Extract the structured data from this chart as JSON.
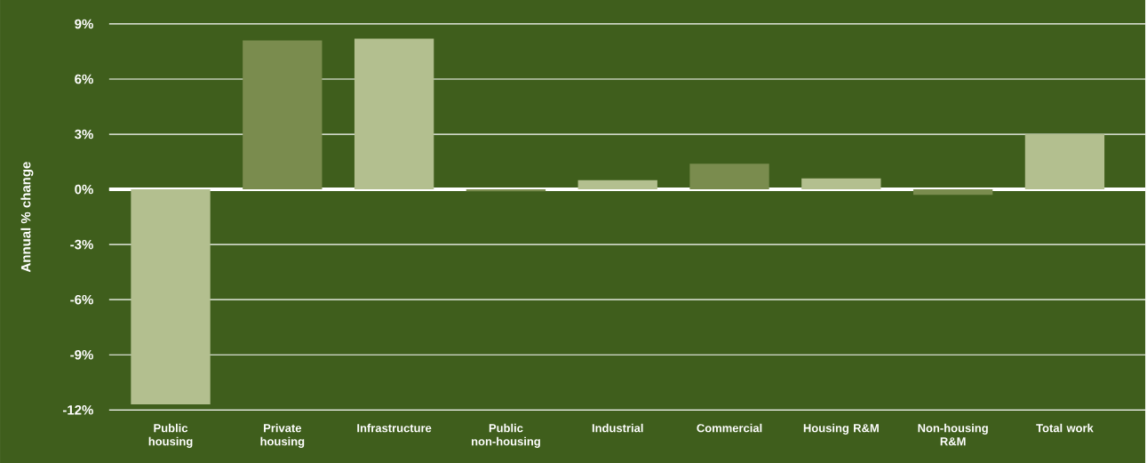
{
  "chart_data": {
    "type": "bar",
    "ylabel": "Annual % change",
    "categories": [
      "Public housing",
      "Private housing",
      "Infrastructure",
      "Public non-housing",
      "Industrial",
      "Commercial",
      "Housing R&M",
      "Non-housing R&M",
      "Total work"
    ],
    "values": [
      -11.7,
      8.1,
      8.2,
      -0.1,
      0.5,
      1.4,
      0.6,
      -0.3,
      3.0
    ],
    "colors": [
      "#b3bf8f",
      "#7a8c4e",
      "#b3bf8f",
      "#7a8c4e",
      "#b3bf8f",
      "#7a8c4e",
      "#b3bf8f",
      "#7a8c4e",
      "#b3bf8f"
    ],
    "ylim": [
      -12,
      9
    ],
    "yticks": [
      {
        "value": -12,
        "label": "-12%"
      },
      {
        "value": -9,
        "label": "-9%"
      },
      {
        "value": -6,
        "label": "-6%"
      },
      {
        "value": -3,
        "label": "-3%"
      },
      {
        "value": 0,
        "label": "0%"
      },
      {
        "value": 3,
        "label": "3%"
      },
      {
        "value": 6,
        "label": "6%"
      },
      {
        "value": 9,
        "label": "9%"
      }
    ],
    "grid": "y"
  }
}
